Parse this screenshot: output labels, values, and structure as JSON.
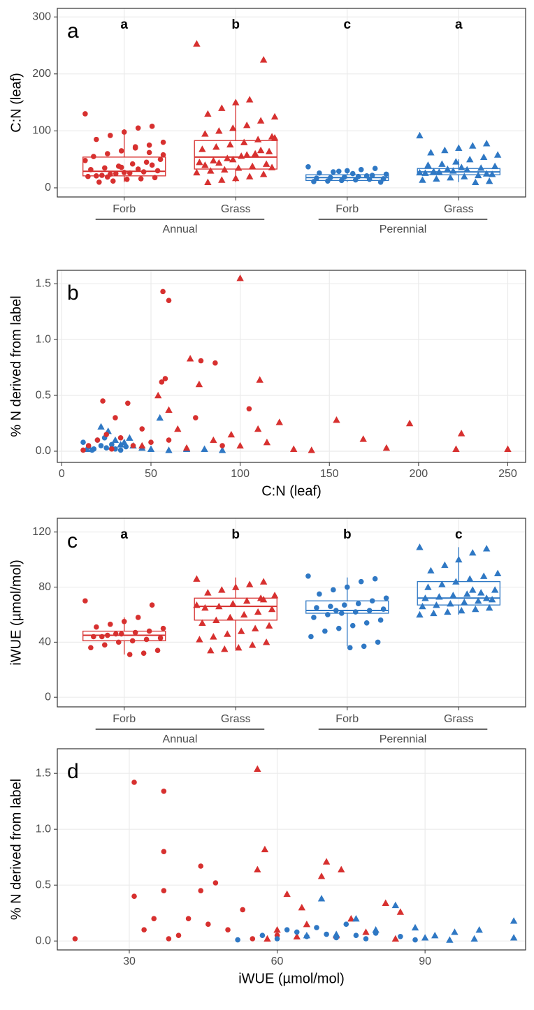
{
  "chart_data": [
    {
      "type": "box",
      "panel_label": "a",
      "ylabel": "C:N (leaf)",
      "ylim": [
        -16,
        315
      ],
      "yticks": [
        0,
        100,
        200,
        300
      ],
      "grid": true,
      "groups": [
        {
          "name": "Annual",
          "categories": [
            "Forb",
            "Grass"
          ]
        },
        {
          "name": "Perennial",
          "categories": [
            "Forb",
            "Grass"
          ]
        }
      ],
      "boxes": [
        {
          "letter": "a",
          "color": "#d7302f",
          "marker": "circle",
          "whisker": [
            10,
            103
          ],
          "q1": 21,
          "median": 29,
          "q3": 54,
          "points": [
            130,
            108,
            105,
            98,
            92,
            85,
            80,
            75,
            70,
            65,
            60,
            55,
            50,
            45,
            42,
            38,
            35,
            32,
            30,
            28,
            26,
            25,
            22,
            20,
            18,
            16,
            15,
            12,
            10,
            48,
            40,
            33,
            27,
            24,
            21,
            58,
            62,
            72,
            36,
            19
          ]
        },
        {
          "letter": "b",
          "color": "#d7302f",
          "marker": "triangle",
          "whisker": [
            10,
            152
          ],
          "q1": 33,
          "median": 54,
          "q3": 83,
          "points": [
            253,
            225,
            155,
            150,
            140,
            130,
            125,
            118,
            110,
            105,
            100,
            95,
            90,
            85,
            80,
            76,
            72,
            68,
            64,
            60,
            56,
            52,
            48,
            45,
            42,
            38,
            35,
            32,
            30,
            27,
            24,
            20,
            17,
            14,
            10,
            88,
            66,
            58,
            50,
            44,
            40,
            36
          ]
        },
        {
          "letter": "c",
          "color": "#2f78c4",
          "marker": "circle",
          "whisker": [
            10,
            33
          ],
          "q1": 13,
          "median": 18,
          "q3": 23,
          "points": [
            37,
            34,
            32,
            30,
            28,
            26,
            24,
            22,
            20,
            19,
            18,
            17,
            16,
            15,
            14,
            13,
            12,
            11,
            10,
            21,
            25,
            29
          ]
        },
        {
          "letter": "a",
          "color": "#2f78c4",
          "marker": "triangle",
          "whisker": [
            10,
            50
          ],
          "q1": 23,
          "median": 28,
          "q3": 34,
          "points": [
            92,
            78,
            74,
            70,
            66,
            62,
            58,
            54,
            50,
            46,
            42,
            40,
            38,
            35,
            32,
            30,
            28,
            26,
            24,
            22,
            20,
            18,
            16,
            14,
            12,
            10,
            36,
            33,
            29,
            27,
            25
          ]
        }
      ]
    },
    {
      "type": "scatter",
      "panel_label": "b",
      "ylabel": "% N derived from label",
      "xlabel": "C:N (leaf)",
      "grid": true,
      "xlim": [
        -2.5,
        260
      ],
      "xticks": [
        0,
        50,
        100,
        150,
        200,
        250
      ],
      "ylim": [
        -0.1,
        1.62
      ],
      "yticks": [
        {
          "value": 0,
          "label": "0.0"
        },
        {
          "value": 0.5,
          "label": "0.5"
        },
        {
          "value": 1,
          "label": "1.0"
        },
        {
          "value": 1.5,
          "label": "1.5"
        }
      ],
      "series": [
        {
          "color": "#2f78c4",
          "marker": "circle",
          "x": [
            12,
            15,
            18,
            20,
            22,
            25,
            28,
            30,
            33,
            36,
            24,
            17
          ],
          "values": [
            0.08,
            0.04,
            0.02,
            0.1,
            0.05,
            0.03,
            0.06,
            0.02,
            0.01,
            0.04,
            0.12,
            0.01
          ]
        },
        {
          "color": "#2f78c4",
          "marker": "triangle",
          "x": [
            22,
            26,
            30,
            35,
            40,
            45,
            50,
            55,
            60,
            70,
            80,
            90,
            28,
            33,
            14,
            38
          ],
          "values": [
            0.22,
            0.18,
            0.1,
            0.08,
            0.05,
            0.03,
            0.02,
            0.3,
            0.01,
            0.02,
            0.02,
            0.01,
            0.04,
            0.06,
            0.02,
            0.12
          ]
        },
        {
          "color": "#d7302f",
          "marker": "circle",
          "x": [
            56.7,
            60,
            78,
            86,
            56,
            58,
            37,
            23,
            30,
            45,
            25,
            20,
            15,
            28,
            40,
            60,
            75,
            105,
            50,
            12,
            33,
            90
          ],
          "values": [
            1.43,
            1.35,
            0.81,
            0.79,
            0.62,
            0.65,
            0.43,
            0.45,
            0.3,
            0.2,
            0.15,
            0.1,
            0.05,
            0.02,
            0.05,
            0.1,
            0.3,
            0.38,
            0.08,
            0.01,
            0.12,
            0.05
          ]
        },
        {
          "color": "#d7302f",
          "marker": "triangle",
          "x": [
            100,
            72,
            111,
            77,
            60,
            54,
            154,
            195,
            224,
            250,
            221,
            182,
            169,
            122,
            110,
            95,
            85,
            65,
            130,
            140,
            45,
            70,
            100,
            115
          ],
          "values": [
            1.55,
            0.83,
            0.64,
            0.6,
            0.37,
            0.5,
            0.28,
            0.25,
            0.16,
            0.02,
            0.02,
            0.03,
            0.11,
            0.26,
            0.2,
            0.15,
            0.1,
            0.2,
            0.02,
            0.01,
            0.05,
            0.03,
            0.05,
            0.08
          ]
        }
      ]
    },
    {
      "type": "box",
      "panel_label": "c",
      "ylabel": "iWUE (µmol/mol)",
      "ylim": [
        -7,
        130
      ],
      "yticks": [
        0,
        40,
        80,
        120
      ],
      "grid": true,
      "groups": [
        {
          "name": "Annual",
          "categories": [
            "Forb",
            "Grass"
          ]
        },
        {
          "name": "Perennial",
          "categories": [
            "Forb",
            "Grass"
          ]
        }
      ],
      "boxes": [
        {
          "letter": "a",
          "color": "#d7302f",
          "marker": "circle",
          "whisker": [
            31,
            58
          ],
          "q1": 41,
          "median": 45,
          "q3": 48,
          "points": [
            70,
            67,
            58,
            55,
            53,
            51,
            50,
            48,
            47,
            46,
            45,
            44,
            43,
            42,
            41,
            40,
            38,
            36,
            34,
            32,
            31,
            46,
            44
          ]
        },
        {
          "letter": "b",
          "color": "#d7302f",
          "marker": "triangle",
          "whisker": [
            35,
            87
          ],
          "q1": 56,
          "median": 66,
          "q3": 72,
          "points": [
            86,
            84,
            82,
            80,
            78,
            76,
            74,
            72,
            70,
            68,
            66,
            65,
            64,
            62,
            60,
            58,
            56,
            54,
            52,
            50,
            48,
            46,
            44,
            42,
            40,
            38,
            36,
            35,
            34,
            67,
            71
          ]
        },
        {
          "letter": "b",
          "color": "#2f78c4",
          "marker": "circle",
          "whisker": [
            37,
            87
          ],
          "q1": 61,
          "median": 63,
          "q3": 70,
          "points": [
            88,
            86,
            84,
            80,
            78,
            75,
            72,
            70,
            68,
            67,
            66,
            65,
            64,
            63,
            62,
            61,
            60,
            58,
            56,
            54,
            52,
            50,
            48,
            44,
            40,
            37,
            36,
            63
          ]
        },
        {
          "letter": "c",
          "color": "#2f78c4",
          "marker": "triangle",
          "whisker": [
            60,
            109
          ],
          "q1": 67,
          "median": 72,
          "q3": 84,
          "points": [
            109,
            108,
            105,
            100,
            96,
            92,
            90,
            88,
            86,
            84,
            82,
            80,
            78,
            76,
            75,
            74,
            73,
            72,
            71,
            70,
            69,
            68,
            67,
            66,
            65,
            64,
            63,
            62,
            61,
            60,
            72,
            78
          ]
        }
      ]
    },
    {
      "type": "scatter",
      "panel_label": "d",
      "ylabel": "% N derived from label",
      "xlabel": "iWUE (µmol/mol)",
      "grid": true,
      "xlim": [
        15.4,
        110.4
      ],
      "xticks": [
        30,
        60,
        90
      ],
      "ylim": [
        -0.08,
        1.72
      ],
      "yticks": [
        {
          "value": 0,
          "label": "0.0"
        },
        {
          "value": 0.5,
          "label": "0.5"
        },
        {
          "value": 1,
          "label": "1.0"
        },
        {
          "value": 1.5,
          "label": "1.5"
        }
      ],
      "series": [
        {
          "color": "#d7302f",
          "marker": "circle",
          "x": [
            19,
            31,
            37,
            37,
            37,
            31,
            44.5,
            44.5,
            47.5,
            42,
            35,
            50,
            53,
            40,
            55,
            33,
            46,
            60,
            38
          ],
          "values": [
            0.02,
            1.42,
            1.34,
            0.8,
            0.45,
            0.4,
            0.67,
            0.45,
            0.52,
            0.2,
            0.2,
            0.1,
            0.28,
            0.05,
            0.02,
            0.1,
            0.15,
            0.05,
            0.02
          ]
        },
        {
          "color": "#d7302f",
          "marker": "triangle",
          "x": [
            56,
            57.5,
            56,
            70,
            69,
            73,
            62,
            65,
            75,
            82,
            85,
            60,
            66,
            72,
            78,
            58,
            84,
            64
          ],
          "values": [
            1.54,
            0.82,
            0.64,
            0.71,
            0.58,
            0.64,
            0.42,
            0.3,
            0.2,
            0.34,
            0.26,
            0.1,
            0.15,
            0.05,
            0.08,
            0.02,
            0.02,
            0.04
          ]
        },
        {
          "color": "#2f78c4",
          "marker": "circle",
          "x": [
            57,
            60,
            62,
            64,
            66,
            68,
            70,
            72,
            74,
            76,
            78,
            80,
            85,
            88,
            52
          ],
          "values": [
            0.05,
            0.02,
            0.1,
            0.08,
            0.04,
            0.12,
            0.06,
            0.03,
            0.15,
            0.05,
            0.02,
            0.07,
            0.04,
            0.01,
            0.01
          ]
        },
        {
          "color": "#2f78c4",
          "marker": "triangle",
          "x": [
            69,
            84,
            108,
            101,
            96,
            92,
            88,
            80,
            76,
            72,
            100,
            108,
            95,
            90,
            66
          ],
          "values": [
            0.38,
            0.32,
            0.18,
            0.1,
            0.08,
            0.05,
            0.12,
            0.1,
            0.2,
            0.06,
            0.02,
            0.03,
            0.01,
            0.03,
            0.05
          ]
        }
      ]
    }
  ]
}
